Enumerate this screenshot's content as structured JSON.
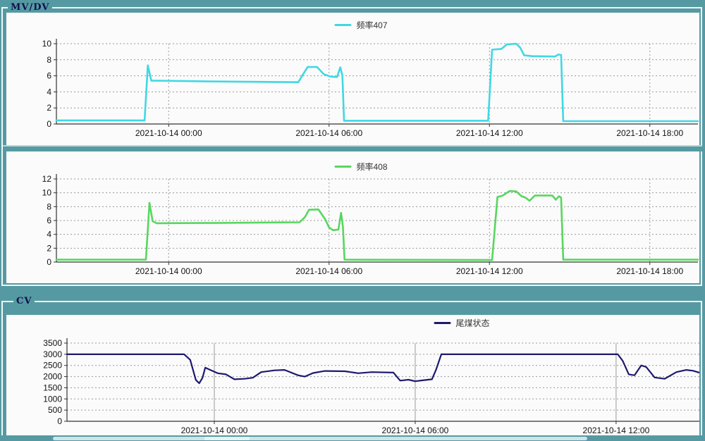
{
  "groups": {
    "mvdv_label": "MV/DV",
    "cv_label": "CV"
  },
  "colors": {
    "background_teal": "#559aa2",
    "panel_white": "#fbfbfb",
    "group_border": "#f3f8f8",
    "group_label_text": "#10104e",
    "grid_gray": "#999999",
    "axis_dark": "#333333"
  },
  "chart_data": [
    {
      "type": "line",
      "legend": "频率407",
      "color": "#3fd8e4",
      "stroke_width": 2.6,
      "xlim": [
        -4.2,
        19.8
      ],
      "ylim": [
        0,
        10
      ],
      "y_step": 2,
      "x_unit": "hours relative to 2021-10-14 00:00",
      "vgrid": "dashed",
      "x_ticks": [
        {
          "pos": 0,
          "label": "2021-10-14 00:00"
        },
        {
          "pos": 6,
          "label": "2021-10-14 06:00"
        },
        {
          "pos": 12,
          "label": "2021-10-14 12:00"
        },
        {
          "pos": 18,
          "label": "2021-10-14 18:00"
        }
      ],
      "points": [
        [
          -4.2,
          0.45
        ],
        [
          -0.9,
          0.45
        ],
        [
          -0.78,
          7.3
        ],
        [
          -0.65,
          5.4
        ],
        [
          1.5,
          5.3
        ],
        [
          4.85,
          5.2
        ],
        [
          5.05,
          6.3
        ],
        [
          5.2,
          7.1
        ],
        [
          5.55,
          7.1
        ],
        [
          5.8,
          6.2
        ],
        [
          6.05,
          5.9
        ],
        [
          6.3,
          5.85
        ],
        [
          6.42,
          7.05
        ],
        [
          6.5,
          6.0
        ],
        [
          6.56,
          0.4
        ],
        [
          11.95,
          0.4
        ],
        [
          12.1,
          9.25
        ],
        [
          12.45,
          9.35
        ],
        [
          12.65,
          9.9
        ],
        [
          13.0,
          10.0
        ],
        [
          13.15,
          9.5
        ],
        [
          13.3,
          8.55
        ],
        [
          13.6,
          8.45
        ],
        [
          14.45,
          8.4
        ],
        [
          14.58,
          8.65
        ],
        [
          14.68,
          8.6
        ],
        [
          14.76,
          0.35
        ],
        [
          19.8,
          0.35
        ]
      ]
    },
    {
      "type": "line",
      "legend": "频率408",
      "color": "#57d75f",
      "stroke_width": 2.6,
      "xlim": [
        -4.2,
        19.8
      ],
      "ylim": [
        0,
        12
      ],
      "y_step": 2,
      "x_unit": "hours relative to 2021-10-14 00:00",
      "vgrid": "dashed",
      "x_ticks": [
        {
          "pos": 0,
          "label": "2021-10-14 00:00"
        },
        {
          "pos": 6,
          "label": "2021-10-14 06:00"
        },
        {
          "pos": 12,
          "label": "2021-10-14 12:00"
        },
        {
          "pos": 18,
          "label": "2021-10-14 18:00"
        }
      ],
      "points": [
        [
          -4.2,
          0.35
        ],
        [
          -0.85,
          0.35
        ],
        [
          -0.72,
          8.55
        ],
        [
          -0.6,
          5.9
        ],
        [
          -0.45,
          5.6
        ],
        [
          2.0,
          5.65
        ],
        [
          4.9,
          5.75
        ],
        [
          5.1,
          6.5
        ],
        [
          5.25,
          7.55
        ],
        [
          5.6,
          7.6
        ],
        [
          5.85,
          6.2
        ],
        [
          6.0,
          5.0
        ],
        [
          6.15,
          4.6
        ],
        [
          6.35,
          4.7
        ],
        [
          6.45,
          7.1
        ],
        [
          6.52,
          5.0
        ],
        [
          6.58,
          0.35
        ],
        [
          12.1,
          0.3
        ],
        [
          12.3,
          9.4
        ],
        [
          12.5,
          9.6
        ],
        [
          12.75,
          10.25
        ],
        [
          13.0,
          10.2
        ],
        [
          13.2,
          9.5
        ],
        [
          13.35,
          9.3
        ],
        [
          13.5,
          8.85
        ],
        [
          13.7,
          9.6
        ],
        [
          14.35,
          9.6
        ],
        [
          14.48,
          9.0
        ],
        [
          14.6,
          9.5
        ],
        [
          14.68,
          9.3
        ],
        [
          14.76,
          0.35
        ],
        [
          19.8,
          0.35
        ]
      ]
    },
    {
      "type": "line",
      "legend": "尾煤状态",
      "color": "#1d1a6e",
      "stroke_width": 2.2,
      "xlim": [
        -4.4,
        14.55
      ],
      "ylim": [
        0,
        3500
      ],
      "y_step": 500,
      "x_unit": "hours relative to 2021-10-14 00:00",
      "vgrid": "solid",
      "x_ticks": [
        {
          "pos": 0,
          "label": "2021-10-14 00:00"
        },
        {
          "pos": 6,
          "label": "2021-10-14 06:00"
        },
        {
          "pos": 12,
          "label": "2021-10-14 12:00"
        }
      ],
      "points": [
        [
          -4.4,
          3000
        ],
        [
          -0.9,
          3000
        ],
        [
          -0.72,
          2750
        ],
        [
          -0.55,
          1850
        ],
        [
          -0.45,
          1700
        ],
        [
          -0.35,
          1950
        ],
        [
          -0.27,
          2400
        ],
        [
          -0.12,
          2300
        ],
        [
          0.1,
          2150
        ],
        [
          0.35,
          2100
        ],
        [
          0.6,
          1880
        ],
        [
          0.9,
          1900
        ],
        [
          1.15,
          1950
        ],
        [
          1.4,
          2200
        ],
        [
          1.8,
          2280
        ],
        [
          2.1,
          2300
        ],
        [
          2.5,
          2060
        ],
        [
          2.7,
          2000
        ],
        [
          2.95,
          2160
        ],
        [
          3.3,
          2250
        ],
        [
          3.9,
          2240
        ],
        [
          4.3,
          2150
        ],
        [
          4.7,
          2200
        ],
        [
          5.35,
          2180
        ],
        [
          5.55,
          1820
        ],
        [
          5.8,
          1860
        ],
        [
          6.0,
          1790
        ],
        [
          6.2,
          1830
        ],
        [
          6.5,
          1880
        ],
        [
          6.62,
          2300
        ],
        [
          6.78,
          3000
        ],
        [
          12.05,
          3000
        ],
        [
          12.2,
          2700
        ],
        [
          12.38,
          2100
        ],
        [
          12.55,
          2060
        ],
        [
          12.75,
          2500
        ],
        [
          12.9,
          2430
        ],
        [
          13.15,
          1960
        ],
        [
          13.45,
          1900
        ],
        [
          13.8,
          2200
        ],
        [
          14.1,
          2300
        ],
        [
          14.3,
          2260
        ],
        [
          14.55,
          2150
        ]
      ]
    }
  ]
}
